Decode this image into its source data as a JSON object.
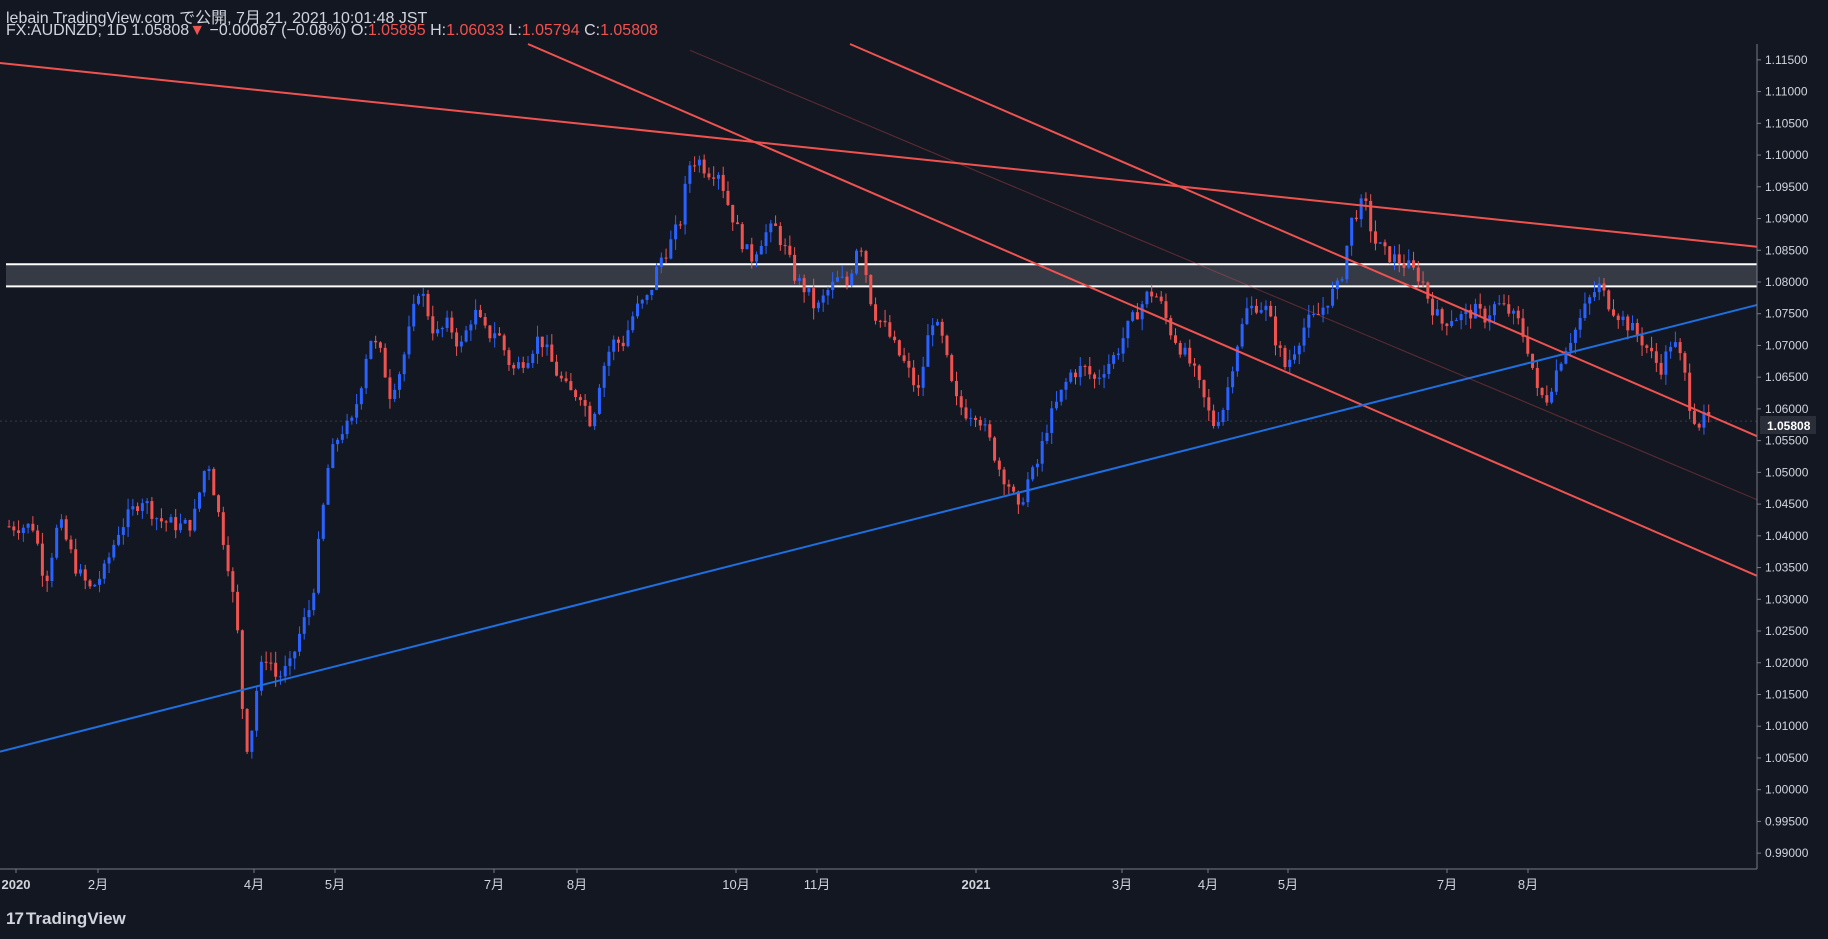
{
  "header": {
    "line1": "lebain TradingView.com で公開, 7月 21, 2021 10:01:48 JST",
    "symbol": "FX:AUDNZD, 1D 1.05808",
    "arrow": "▼",
    "change": "−0.00087 (−0.08%)",
    "o_label": "O:",
    "o_value": "1.05895",
    "h_label": "H:",
    "h_value": "1.06033",
    "l_label": "L:",
    "l_value": "1.05794",
    "c_label": "C:",
    "c_value": "1.05808"
  },
  "footer": {
    "logo_mark": "17",
    "logo_text": "TradingView"
  },
  "colors": {
    "bg": "#131722",
    "up": "#2962ff",
    "down": "#ef5350",
    "trend_red": "#ef5350",
    "trend_blue": "#1e6fe0",
    "zone": "#ffffff",
    "text": "#d1d4dc"
  },
  "chart_data": {
    "type": "candlestick",
    "symbol": "FX:AUDNZD",
    "interval": "1D",
    "ylim": [
      0.9875,
      1.1175
    ],
    "xlim": [
      0,
      1550
    ],
    "y_ticks": [
      "1.11500",
      "1.11000",
      "1.10500",
      "1.10000",
      "1.09500",
      "1.09000",
      "1.08500",
      "1.08000",
      "1.07500",
      "1.07000",
      "1.06500",
      "1.06000",
      "1.05500",
      "1.05000",
      "1.04500",
      "1.04000",
      "1.03500",
      "1.03000",
      "1.02500",
      "1.02000",
      "1.01500",
      "1.01000",
      "1.00500",
      "1.00000",
      "0.99500",
      "0.99000"
    ],
    "y_tick_values": [
      1.115,
      1.11,
      1.105,
      1.1,
      1.095,
      1.09,
      1.085,
      1.08,
      1.075,
      1.07,
      1.065,
      1.06,
      1.055,
      1.05,
      1.045,
      1.04,
      1.035,
      1.03,
      1.025,
      1.02,
      1.015,
      1.01,
      1.005,
      1.0,
      0.995,
      0.99
    ],
    "x_ticks": [
      {
        "label": "2020",
        "x": 16
      },
      {
        "label": "2月",
        "x": 98
      },
      {
        "label": "4月",
        "x": 254
      },
      {
        "label": "5月",
        "x": 335
      },
      {
        "label": "7月",
        "x": 494
      },
      {
        "label": "8月",
        "x": 577
      },
      {
        "label": "10月",
        "x": 736
      },
      {
        "label": "11月",
        "x": 817
      },
      {
        "label": "2021",
        "x": 976
      },
      {
        "label": "3月",
        "x": 1122
      },
      {
        "label": "4月",
        "x": 1208
      },
      {
        "label": "5月",
        "x": 1288
      },
      {
        "label": "7月",
        "x": 1447
      },
      {
        "label": "8月",
        "x": 1528
      }
    ],
    "price_label": "1.05808",
    "last_price": 1.05808,
    "series_points": [
      [
        8,
        1.0415
      ],
      [
        30,
        1.0415
      ],
      [
        40,
        1.0325
      ],
      [
        52,
        1.0425
      ],
      [
        68,
        1.0345
      ],
      [
        80,
        1.0315
      ],
      [
        92,
        1.0345
      ],
      [
        105,
        1.041
      ],
      [
        125,
        1.046
      ],
      [
        140,
        1.0425
      ],
      [
        160,
        1.0415
      ],
      [
        170,
        1.042
      ],
      [
        183,
        1.0525
      ],
      [
        190,
        1.046
      ],
      [
        203,
        1.034
      ],
      [
        210,
        1.024
      ],
      [
        214,
        1.0125
      ],
      [
        218,
        1.007
      ],
      [
        222,
        1.0095
      ],
      [
        228,
        1.018
      ],
      [
        236,
        1.0215
      ],
      [
        244,
        1.0175
      ],
      [
        256,
        1.0195
      ],
      [
        266,
        1.0255
      ],
      [
        275,
        1.0295
      ],
      [
        290,
        1.0515
      ],
      [
        300,
        1.0565
      ],
      [
        310,
        1.0575
      ],
      [
        318,
        1.0635
      ],
      [
        326,
        1.0715
      ],
      [
        336,
        1.0685
      ],
      [
        344,
        1.0625
      ],
      [
        354,
        1.0665
      ],
      [
        370,
        1.0795
      ],
      [
        384,
        1.0715
      ],
      [
        396,
        1.0735
      ],
      [
        406,
        1.0695
      ],
      [
        418,
        1.0755
      ],
      [
        430,
        1.0715
      ],
      [
        438,
        1.0725
      ],
      [
        452,
        1.066
      ],
      [
        466,
        1.0685
      ],
      [
        476,
        1.0715
      ],
      [
        490,
        1.066
      ],
      [
        502,
        1.0625
      ],
      [
        512,
        1.0625
      ],
      [
        522,
        1.0575
      ],
      [
        530,
        1.0655
      ],
      [
        540,
        1.0705
      ],
      [
        550,
        1.0705
      ],
      [
        560,
        1.0755
      ],
      [
        572,
        1.0775
      ],
      [
        582,
        1.0835
      ],
      [
        590,
        1.0855
      ],
      [
        600,
        1.0895
      ],
      [
        608,
        1.0985
      ],
      [
        615,
        1.0995
      ],
      [
        624,
        1.0975
      ],
      [
        634,
        1.0975
      ],
      [
        642,
        1.0925
      ],
      [
        652,
        1.0875
      ],
      [
        662,
        1.0835
      ],
      [
        674,
        1.0875
      ],
      [
        684,
        1.0885
      ],
      [
        694,
        1.0845
      ],
      [
        702,
        1.0805
      ],
      [
        712,
        1.0785
      ],
      [
        720,
        1.0755
      ],
      [
        730,
        1.0785
      ],
      [
        740,
        1.0805
      ],
      [
        748,
        1.0795
      ],
      [
        758,
        1.0875
      ],
      [
        770,
        1.0755
      ],
      [
        782,
        1.0725
      ],
      [
        790,
        1.0695
      ],
      [
        800,
        1.0665
      ],
      [
        810,
        1.0625
      ],
      [
        822,
        1.0745
      ],
      [
        832,
        1.0705
      ],
      [
        842,
        1.0615
      ],
      [
        852,
        1.0595
      ],
      [
        862,
        1.0595
      ],
      [
        874,
        1.0545
      ],
      [
        882,
        1.0505
      ],
      [
        892,
        1.0475
      ],
      [
        898,
        1.0435
      ],
      [
        906,
        1.0485
      ],
      [
        914,
        1.0505
      ],
      [
        924,
        1.0575
      ],
      [
        934,
        1.0615
      ],
      [
        944,
        1.0655
      ],
      [
        956,
        1.0665
      ],
      [
        966,
        1.0645
      ],
      [
        974,
        1.0665
      ],
      [
        984,
        1.0685
      ],
      [
        994,
        1.0725
      ],
      [
        1004,
        1.0755
      ],
      [
        1014,
        1.0785
      ],
      [
        1022,
        1.0775
      ],
      [
        1032,
        1.0725
      ],
      [
        1042,
        1.0695
      ],
      [
        1052,
        1.0665
      ],
      [
        1062,
        1.0615
      ],
      [
        1070,
        1.0575
      ],
      [
        1080,
        1.0605
      ],
      [
        1090,
        1.0695
      ],
      [
        1100,
        1.0755
      ],
      [
        1110,
        1.0765
      ],
      [
        1118,
        1.0755
      ],
      [
        1126,
        1.0705
      ],
      [
        1134,
        1.0665
      ],
      [
        1142,
        1.0695
      ],
      [
        1152,
        1.0735
      ],
      [
        1162,
        1.0745
      ],
      [
        1172,
        1.0775
      ],
      [
        1182,
        1.0795
      ],
      [
        1192,
        1.0895
      ],
      [
        1198,
        1.0915
      ],
      [
        1204,
        1.0925
      ],
      [
        1212,
        1.0865
      ],
      [
        1222,
        1.0845
      ],
      [
        1232,
        1.0835
      ],
      [
        1242,
        1.0825
      ],
      [
        1254,
        1.0805
      ],
      [
        1262,
        1.0765
      ],
      [
        1272,
        1.0735
      ],
      [
        1280,
        1.0745
      ],
      [
        1290,
        1.0745
      ],
      [
        1300,
        1.0755
      ],
      [
        1310,
        1.0745
      ],
      [
        1320,
        1.0765
      ],
      [
        1330,
        1.0755
      ],
      [
        1340,
        1.0735
      ],
      [
        1350,
        1.0685
      ],
      [
        1356,
        1.0625
      ],
      [
        1364,
        1.0615
      ],
      [
        1370,
        1.0645
      ],
      [
        1380,
        1.0695
      ],
      [
        1390,
        1.0725
      ],
      [
        1400,
        1.0765
      ],
      [
        1410,
        1.0795
      ],
      [
        1420,
        1.0765
      ],
      [
        1430,
        1.0745
      ],
      [
        1440,
        1.0725
      ],
      [
        1450,
        1.0705
      ],
      [
        1460,
        1.0675
      ],
      [
        1466,
        1.0665
      ],
      [
        1474,
        1.0705
      ],
      [
        1480,
        1.0695
      ],
      [
        1486,
        1.0655
      ],
      [
        1492,
        1.0595
      ],
      [
        1500,
        1.0575
      ],
      [
        1504,
        1.0585
      ],
      [
        1510,
        1.0581
      ]
    ],
    "trendlines": [
      {
        "name": "upper-resistance",
        "color": "red",
        "x1": 0,
        "y1": 1.1145,
        "x2": 1760,
        "y2": 1.0855
      },
      {
        "name": "channel-upper",
        "color": "red",
        "x1": 850,
        "y1": 1.1175,
        "x2": 1760,
        "y2": 1.0555
      },
      {
        "name": "channel-lower",
        "color": "red",
        "x1": 528,
        "y1": 1.1175,
        "x2": 1760,
        "y2": 1.0335
      },
      {
        "name": "support",
        "color": "blue",
        "x1": 0,
        "y1": 1.006,
        "x2": 1760,
        "y2": 1.0765
      },
      {
        "name": "mid-dotted",
        "color": "red-faint",
        "x1": 690,
        "y1": 1.1165,
        "x2": 1760,
        "y2": 1.0455
      }
    ],
    "zone": {
      "top": 1.0828,
      "bottom": 1.0793
    }
  }
}
